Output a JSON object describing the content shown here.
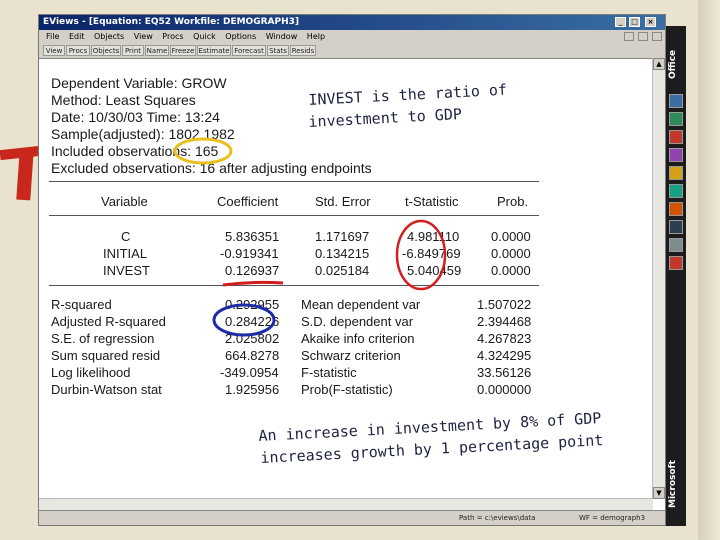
{
  "window": {
    "title": "EViews - [Equation: EQ52   Workfile: DEMOGRAPH3]",
    "menu": [
      "File",
      "Edit",
      "Objects",
      "View",
      "Procs",
      "Quick",
      "Options",
      "Window",
      "Help"
    ],
    "toolbar": [
      "View",
      "Procs",
      "Objects",
      "Print",
      "Name",
      "Freeze",
      "Estimate",
      "Forecast",
      "Stats",
      "Resids"
    ],
    "status_left": "Path = c:\\eviews\\data",
    "status_right": "WF = demograph3"
  },
  "header": {
    "dependent": "Dependent Variable: GROW",
    "method": "Method: Least Squares",
    "date": "Date: 10/30/03   Time: 13:24",
    "sample": "Sample(adjusted): 1802 1982",
    "included": "Included observations: 165",
    "excluded": "Excluded observations: 16 after adjusting endpoints"
  },
  "coef_table": {
    "columns": [
      "Variable",
      "Coefficient",
      "Std. Error",
      "t-Statistic",
      "Prob."
    ],
    "rows": [
      {
        "variable": "C",
        "coefficient": "5.836351",
        "std_error": "1.171697",
        "t_stat": "4.981110",
        "prob": "0.0000"
      },
      {
        "variable": "INITIAL",
        "coefficient": "-0.919341",
        "std_error": "0.134215",
        "t_stat": "-6.849769",
        "prob": "0.0000"
      },
      {
        "variable": "INVEST",
        "coefficient": "0.126937",
        "std_error": "0.025184",
        "t_stat": "5.040459",
        "prob": "0.0000"
      }
    ]
  },
  "stats_table": {
    "rows": [
      {
        "l_label": "R-squared",
        "l_value": "0.292955",
        "r_label": "Mean dependent var",
        "r_value": "1.507022"
      },
      {
        "l_label": "Adjusted R-squared",
        "l_value": "0.284226",
        "r_label": "S.D. dependent var",
        "r_value": "2.394468"
      },
      {
        "l_label": "S.E. of regression",
        "l_value": "2.025802",
        "r_label": "Akaike info criterion",
        "r_value": "4.267823"
      },
      {
        "l_label": "Sum squared resid",
        "l_value": "664.8278",
        "r_label": "Schwarz criterion",
        "r_value": "4.324295"
      },
      {
        "l_label": "Log likelihood",
        "l_value": "-349.0954",
        "r_label": "F-statistic",
        "r_value": "33.56126"
      },
      {
        "l_label": "Durbin-Watson stat",
        "l_value": "1.925956",
        "r_label": "Prob(F-statistic)",
        "r_value": "0.000000"
      }
    ]
  },
  "annotations": {
    "note1_line1": "INVEST is the ratio of",
    "note1_line2": "investment to GDP",
    "note2_line1": "An increase in investment by 8% of GDP",
    "note2_line2": "increases growth by 1 percentage point"
  },
  "office_bar": {
    "top_label": "Office",
    "bottom_label": "Microsoft"
  },
  "colors": {
    "circle": "#e8c020",
    "red_mark": "#d21e1e",
    "blue_mark": "#1e2aa8",
    "note_ink": "#1c2240"
  }
}
